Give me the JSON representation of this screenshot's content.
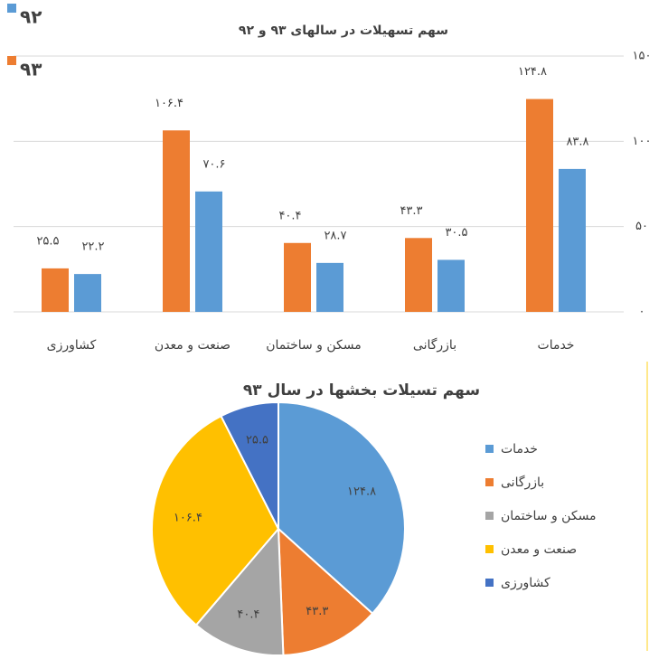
{
  "chart_data": [
    {
      "type": "bar",
      "title": "سهم تسهیلات در سالهای ۹۳ و ۹۲",
      "categories": [
        "خدمات",
        "بازرگانی",
        "مسکن و ساختمان",
        "صنعت و معدن",
        "کشاورزی"
      ],
      "series": [
        {
          "name": "۹۲",
          "color": "#5b9bd5",
          "values": [
            83.8,
            30.5,
            28.7,
            70.6,
            22.2
          ],
          "value_labels": [
            "۸۳.۸",
            "۳۰.۵",
            "۲۸.۷",
            "۷۰.۶",
            "۲۲.۲"
          ]
        },
        {
          "name": "۹۳",
          "color": "#ed7d31",
          "values": [
            124.8,
            43.3,
            40.4,
            106.4,
            25.5
          ],
          "value_labels": [
            "۱۲۴.۸",
            "۴۳.۳",
            "۴۰.۴",
            "۱۰۶.۴",
            "۲۵.۵"
          ]
        }
      ],
      "ylim": [
        0,
        150
      ],
      "yticks": [
        {
          "value": 0,
          "label": "۰"
        },
        {
          "value": 50,
          "label": "۵۰"
        },
        {
          "value": 100,
          "label": "۱۰۰"
        },
        {
          "value": 150,
          "label": "۱۵۰"
        }
      ],
      "grid": true,
      "legend": "top-left"
    },
    {
      "type": "pie",
      "title": "سهم تسیلات بخشها در سال ۹۳",
      "categories": [
        "خدمات",
        "بازرگانی",
        "مسکن و ساختمان",
        "صنعت و معدن",
        "کشاورزی"
      ],
      "values": [
        124.8,
        43.3,
        40.4,
        106.4,
        25.5
      ],
      "value_labels": [
        "۱۲۴.۸",
        "۴۳.۳",
        "۴۰.۴",
        "۱۰۶.۴",
        "۲۵.۵"
      ],
      "colors": [
        "#5b9bd5",
        "#ed7d31",
        "#a5a5a5",
        "#ffc000",
        "#4472c4"
      ],
      "legend": "right"
    }
  ]
}
